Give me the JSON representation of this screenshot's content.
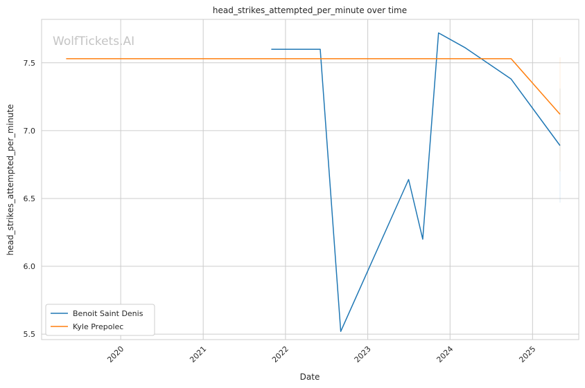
{
  "watermark": "WolfTickets.AI",
  "chart_data": {
    "type": "line",
    "title": "head_strikes_attempted_per_minute over time",
    "xlabel": "Date",
    "ylabel": "head_strikes_attempted_per_minute",
    "x_ticks": [
      "2020",
      "2021",
      "2022",
      "2023",
      "2024",
      "2025"
    ],
    "y_ticks": [
      "5.5",
      "6.0",
      "6.5",
      "7.0",
      "7.5"
    ],
    "xlim": [
      "2019-01-15",
      "2025-07-25"
    ],
    "ylim": [
      5.46,
      7.82
    ],
    "grid": true,
    "legend_position": "lower-left",
    "series": [
      {
        "name": "Benoit Saint Denis",
        "color": "#1f77b4",
        "points": [
          {
            "x": "2021-10-30",
            "y": 7.6
          },
          {
            "x": "2022-06-04",
            "y": 7.6
          },
          {
            "x": "2022-09-03",
            "y": 5.52
          },
          {
            "x": "2023-07-01",
            "y": 6.64
          },
          {
            "x": "2023-09-02",
            "y": 6.2
          },
          {
            "x": "2023-11-11",
            "y": 7.72
          },
          {
            "x": "2024-03-09",
            "y": 7.61
          },
          {
            "x": "2024-09-28",
            "y": 7.38
          },
          {
            "x": "2025-05-03",
            "y": 6.89
          }
        ]
      },
      {
        "name": "Kyle Prepolec",
        "color": "#ff7f0e",
        "points": [
          {
            "x": "2019-05-04",
            "y": 7.53
          },
          {
            "x": "2024-09-28",
            "y": 7.53
          },
          {
            "x": "2025-05-03",
            "y": 7.12
          }
        ]
      }
    ]
  }
}
